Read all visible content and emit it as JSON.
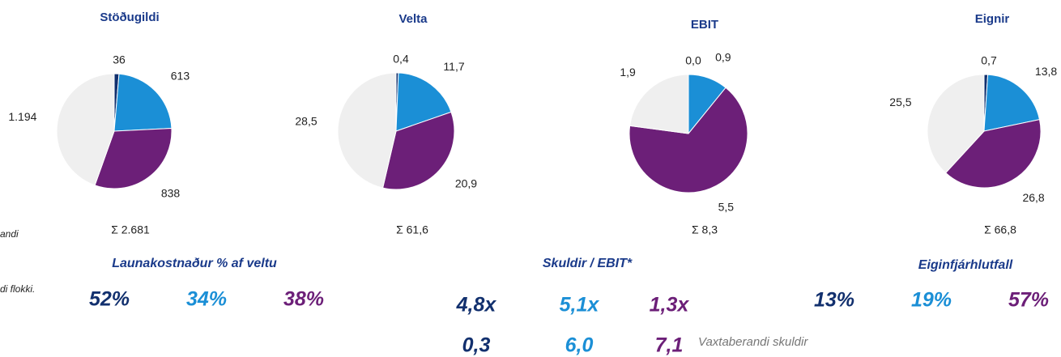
{
  "chart_data": [
    {
      "type": "pie",
      "title": "Stöðugildi",
      "values": [
        36,
        613,
        838,
        1194
      ],
      "value_labels": [
        "36",
        "613",
        "838",
        "1.194"
      ],
      "colors": [
        "#12306e",
        "#1b8fd6",
        "#6c1f78",
        "#efefef"
      ],
      "total": "Σ 2.681"
    },
    {
      "type": "pie",
      "title": "Velta",
      "values": [
        0.4,
        11.7,
        20.9,
        28.5
      ],
      "value_labels": [
        "0,4",
        "11,7",
        "20,9",
        "28,5"
      ],
      "colors": [
        "#12306e",
        "#1b8fd6",
        "#6c1f78",
        "#efefef"
      ],
      "total": "Σ 61,6"
    },
    {
      "type": "pie",
      "title": "EBIT",
      "values": [
        0.0,
        0.9,
        5.5,
        1.9
      ],
      "value_labels": [
        "0,0",
        "0,9",
        "5,5",
        "1,9"
      ],
      "colors": [
        "#12306e",
        "#1b8fd6",
        "#6c1f78",
        "#efefef"
      ],
      "total": "Σ 8,3"
    },
    {
      "type": "pie",
      "title": "Eignir",
      "values": [
        0.7,
        13.8,
        26.8,
        25.5
      ],
      "value_labels": [
        "0,7",
        "13,8",
        "26,8",
        "25,5"
      ],
      "colors": [
        "#12306e",
        "#1b8fd6",
        "#6c1f78",
        "#efefef"
      ],
      "total": "Σ 66,8"
    }
  ],
  "side_notes": [
    "andi",
    "di flokki."
  ],
  "kpis": [
    {
      "title": "Launakostnaður % af veltu",
      "values": [
        "52%",
        "34%",
        "38%"
      ]
    },
    {
      "title": "Skuldir / EBIT*",
      "values": [
        "4,8x",
        "5,1x",
        "1,3x"
      ],
      "values2": [
        "0,3",
        "6,0",
        "7,1"
      ],
      "note": "Vaxtaberandi skuldir"
    },
    {
      "title": "Eiginfjárhlutfall",
      "values": [
        "13%",
        "19%",
        "57%"
      ]
    }
  ]
}
